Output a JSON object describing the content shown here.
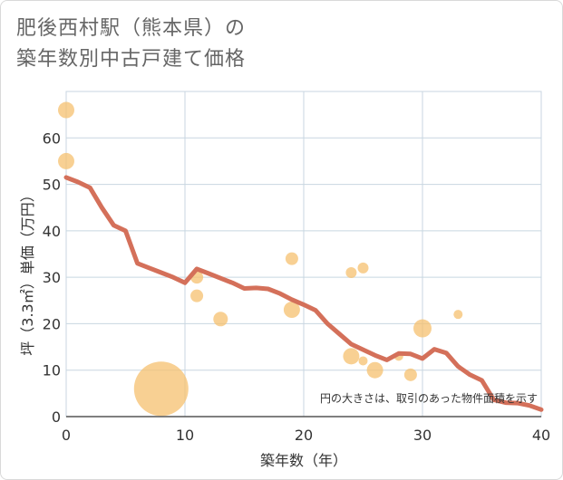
{
  "chart_data": {
    "type": "scatter+line",
    "title_line1": "肥後西村駅（熊本県）の",
    "title_line2": "築年数別中古戸建て価格",
    "xlabel": "築年数（年）",
    "ylabel": "坪（3.3㎡）単価（万円）",
    "xlim": [
      0,
      40
    ],
    "ylim": [
      0,
      70
    ],
    "x_ticks": [
      0,
      10,
      20,
      30,
      40
    ],
    "y_ticks": [
      0,
      10,
      20,
      30,
      40,
      50,
      60
    ],
    "note": "円の大きさは、取引のあった物件面積を示す",
    "colors": {
      "bubble": "#f5c06f",
      "line": "#d4705a",
      "grid": "#c8d6e0",
      "axis": "#555555"
    },
    "bubbles": [
      {
        "x": 0,
        "y": 66,
        "size": 9
      },
      {
        "x": 0,
        "y": 55,
        "size": 9
      },
      {
        "x": 8,
        "y": 6,
        "size": 30
      },
      {
        "x": 11,
        "y": 30,
        "size": 7
      },
      {
        "x": 11,
        "y": 26,
        "size": 7
      },
      {
        "x": 13,
        "y": 21,
        "size": 8
      },
      {
        "x": 19,
        "y": 34,
        "size": 7
      },
      {
        "x": 19,
        "y": 23,
        "size": 9
      },
      {
        "x": 24,
        "y": 31,
        "size": 6
      },
      {
        "x": 24,
        "y": 13,
        "size": 9
      },
      {
        "x": 25,
        "y": 32,
        "size": 6
      },
      {
        "x": 25,
        "y": 12,
        "size": 5
      },
      {
        "x": 26,
        "y": 10,
        "size": 9
      },
      {
        "x": 28,
        "y": 13,
        "size": 5
      },
      {
        "x": 29,
        "y": 9,
        "size": 7
      },
      {
        "x": 30,
        "y": 19,
        "size": 10
      },
      {
        "x": 33,
        "y": 22,
        "size": 5
      }
    ],
    "line": {
      "x": [
        0,
        1,
        2,
        3,
        4,
        5,
        6,
        7,
        8,
        9,
        10,
        11,
        12,
        13,
        14,
        15,
        16,
        17,
        18,
        19,
        20,
        21,
        22,
        23,
        24,
        25,
        26,
        27,
        28,
        29,
        30,
        31,
        32,
        33,
        34,
        35,
        36,
        37,
        38,
        39,
        40
      ],
      "y": [
        51.5,
        50.5,
        49.3,
        45,
        41.2,
        40,
        33,
        32,
        31,
        30,
        28.8,
        31.8,
        30.8,
        29.8,
        28.8,
        27.6,
        27.7,
        27.5,
        26.5,
        25.2,
        24.1,
        22.9,
        20,
        17.8,
        15.6,
        14.4,
        13.2,
        12.2,
        13.6,
        13.5,
        12.5,
        14.5,
        13.7,
        10.8,
        9,
        7.8,
        3.6,
        3,
        2.9,
        2.4,
        1.5
      ]
    }
  }
}
